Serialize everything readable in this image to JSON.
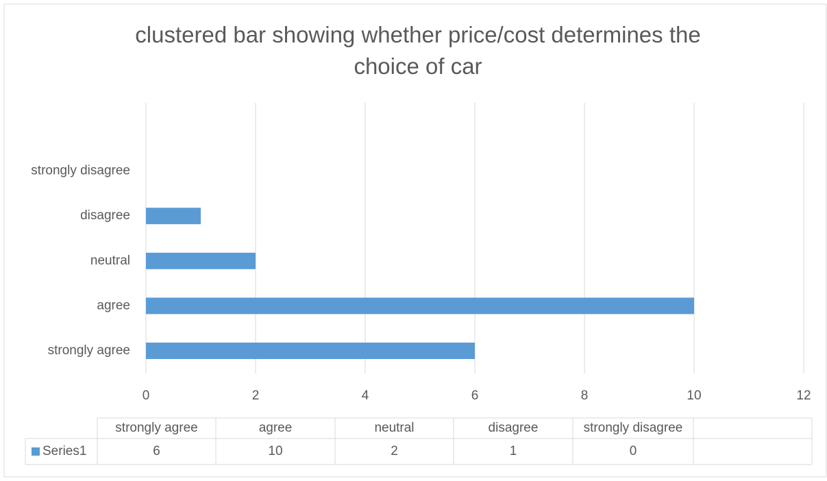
{
  "chart_data": {
    "type": "bar",
    "title": "clustered bar showing whether price/cost determines the choice of car",
    "categories": [
      "strongly agree",
      "agree",
      "neutral",
      "disagree",
      "strongly disagree"
    ],
    "series": [
      {
        "name": "Series1",
        "color": "#5b9bd5",
        "values": [
          6,
          10,
          2,
          1,
          0
        ]
      }
    ],
    "xlim": [
      0,
      12
    ],
    "xticks": [
      0,
      2,
      4,
      6,
      8,
      10,
      12
    ],
    "grid": true
  }
}
